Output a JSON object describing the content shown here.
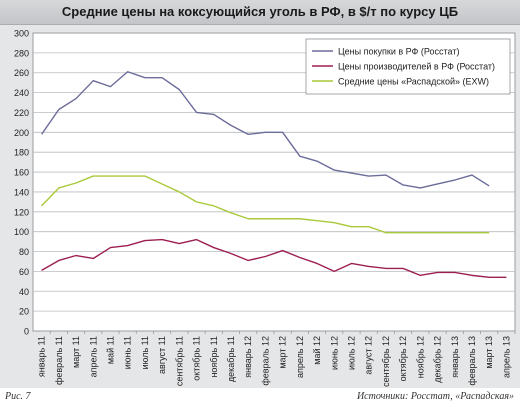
{
  "header": {
    "title": "Средние цены на коксующийся уголь в РФ, в $/т по курсу ЦБ"
  },
  "footer": {
    "figure_label": "Рис. 7",
    "source": "Источники: Росстат, «Распадская»"
  },
  "colors": {
    "series1": "#6b6c9a",
    "series2": "#9c1f52",
    "series3": "#a9c93a",
    "grid": "#b9bcbf",
    "plot_bg": "#ffffff"
  },
  "chart_data": {
    "type": "line",
    "title": "Средние цены на коксующийся уголь в РФ, в $/т по курсу ЦБ",
    "xlabel": "",
    "ylabel": "",
    "ylim": [
      0,
      300
    ],
    "yticks": [
      0,
      20,
      40,
      60,
      80,
      100,
      120,
      140,
      160,
      180,
      200,
      220,
      240,
      260,
      280,
      300
    ],
    "grid": true,
    "legend_position": "top-right",
    "categories": [
      "январь 11",
      "февраль 11",
      "март 11",
      "апрель 11",
      "май 11",
      "июнь 11",
      "июль 11",
      "август 11",
      "сентябрь 11",
      "октябрь 11",
      "ноябрь 11",
      "декабрь 11",
      "январь 12",
      "февраль 12",
      "март 12",
      "апрель 12",
      "май 12",
      "июнь 12",
      "июль 12",
      "август 12",
      "сентябрь 12",
      "октябрь 12",
      "ноябрь 12",
      "декабрь 12",
      "январь 13",
      "февраль 13",
      "март 13",
      "апрель 13"
    ],
    "series": [
      {
        "name": "Цены покупки в РФ (Росстат)",
        "values": [
          198,
          223,
          234,
          252,
          246,
          261,
          255,
          255,
          243,
          220,
          218,
          207,
          198,
          200,
          200,
          176,
          171,
          162,
          159,
          156,
          157,
          147,
          144,
          148,
          152,
          157,
          146,
          null
        ]
      },
      {
        "name": "Цены производителей в РФ (Росстат)",
        "values": [
          61,
          71,
          76,
          73,
          84,
          86,
          91,
          92,
          88,
          92,
          84,
          78,
          71,
          75,
          81,
          74,
          68,
          60,
          68,
          65,
          63,
          63,
          56,
          59,
          59,
          56,
          54,
          54
        ]
      },
      {
        "name": "Средние цены «Распадской» (EXW)",
        "values": [
          126,
          144,
          149,
          156,
          156,
          156,
          156,
          148,
          140,
          130,
          126,
          119,
          113,
          113,
          113,
          113,
          111,
          109,
          105,
          105,
          99,
          99,
          99,
          99,
          99,
          99,
          99,
          null
        ]
      }
    ]
  }
}
